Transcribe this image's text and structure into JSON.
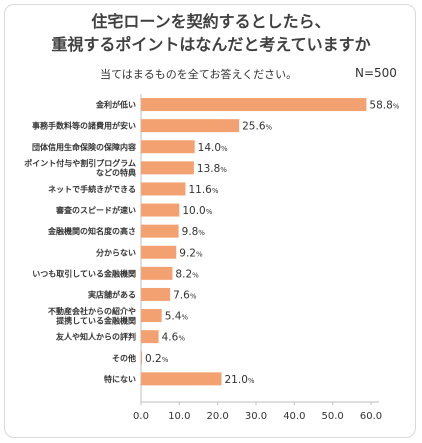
{
  "header": {
    "title_line1": "住宅ローンを契約するとしたら、",
    "title_line2": "重視するポイントはなんだと考えていますか",
    "subtitle": "当てはまるものを全てお答えください。",
    "sample_size": "N=500"
  },
  "chart_data": {
    "type": "bar",
    "orientation": "horizontal",
    "categories": [
      "金利が低い",
      "事務手数料等の諸費用が安い",
      "団体信用生命保険の保障内容",
      "ポイント付与や割引プログラム\nなどの特典",
      "ネットで手続きができる",
      "審査のスピードが速い",
      "金融機関の知名度の高さ",
      "分からない",
      "いつも取引している金融機関",
      "実店舗がある",
      "不動産会社からの紹介や\n提携している金融機関",
      "友人や知人からの評判",
      "その他",
      "特にない"
    ],
    "values": [
      58.8,
      25.6,
      14.0,
      13.8,
      11.6,
      10.0,
      9.8,
      9.2,
      8.2,
      7.6,
      5.4,
      4.6,
      0.2,
      21.0
    ],
    "value_labels": [
      "58.8",
      "25.6",
      "14.0",
      "13.8",
      "11.6",
      "10.0",
      "9.8",
      "9.2",
      "8.2",
      "7.6",
      "5.4",
      "4.6",
      "0.2",
      "21.0"
    ],
    "unit": "%",
    "xlim": [
      0,
      60
    ],
    "x_ticks": [
      "0.0",
      "10.0",
      "20.0",
      "30.0",
      "40.0",
      "50.0",
      "60.0"
    ],
    "bar_color": "#f4a172",
    "grid": false,
    "legend": "none"
  }
}
